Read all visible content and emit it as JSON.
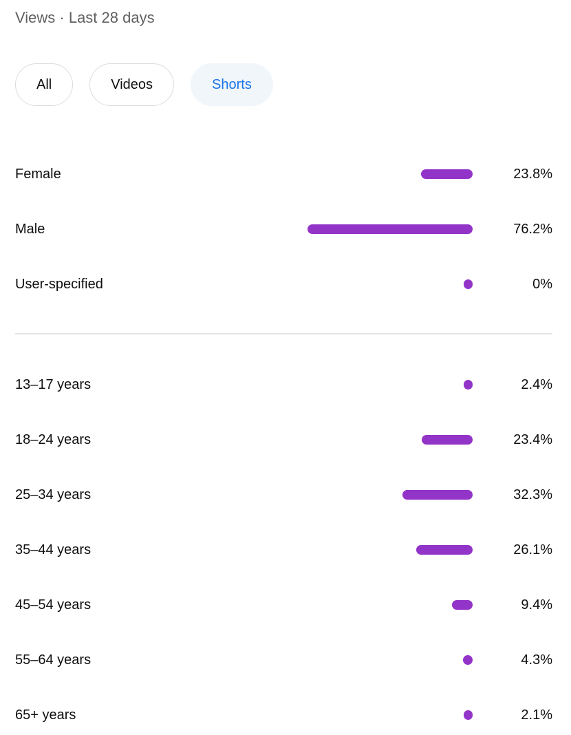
{
  "header": {
    "title": "Views · Last 28 days"
  },
  "filters": {
    "chips": [
      {
        "label": "All",
        "selected": false
      },
      {
        "label": "Videos",
        "selected": false
      },
      {
        "label": "Shorts",
        "selected": true
      }
    ]
  },
  "colors": {
    "bar": "#9334c9",
    "title_text": "#606060",
    "label_text": "#0f0f0f",
    "chip_border": "#dadce0",
    "chip_selected_bg": "#f1f6fb",
    "chip_selected_text": "#1a73e8",
    "divider": "#e6e6e6"
  },
  "chart_data": {
    "type": "bar",
    "orientation": "horizontal",
    "title": "Views · Last 28 days",
    "xlim": [
      0,
      100
    ],
    "grid": false,
    "legend": false,
    "groups": [
      {
        "name": "gender",
        "categories": [
          "Female",
          "Male",
          "User-specified"
        ],
        "values": [
          23.8,
          76.2,
          0
        ],
        "value_labels": [
          "23.8%",
          "76.2%",
          "0%"
        ]
      },
      {
        "name": "age",
        "categories": [
          "13–17 years",
          "18–24 years",
          "25–34 years",
          "35–44 years",
          "45–54 years",
          "55–64 years",
          "65+ years"
        ],
        "values": [
          2.4,
          23.4,
          32.3,
          26.1,
          9.4,
          4.3,
          2.1
        ],
        "value_labels": [
          "2.4%",
          "23.4%",
          "32.3%",
          "26.1%",
          "9.4%",
          "4.3%",
          "2.1%"
        ]
      }
    ]
  }
}
